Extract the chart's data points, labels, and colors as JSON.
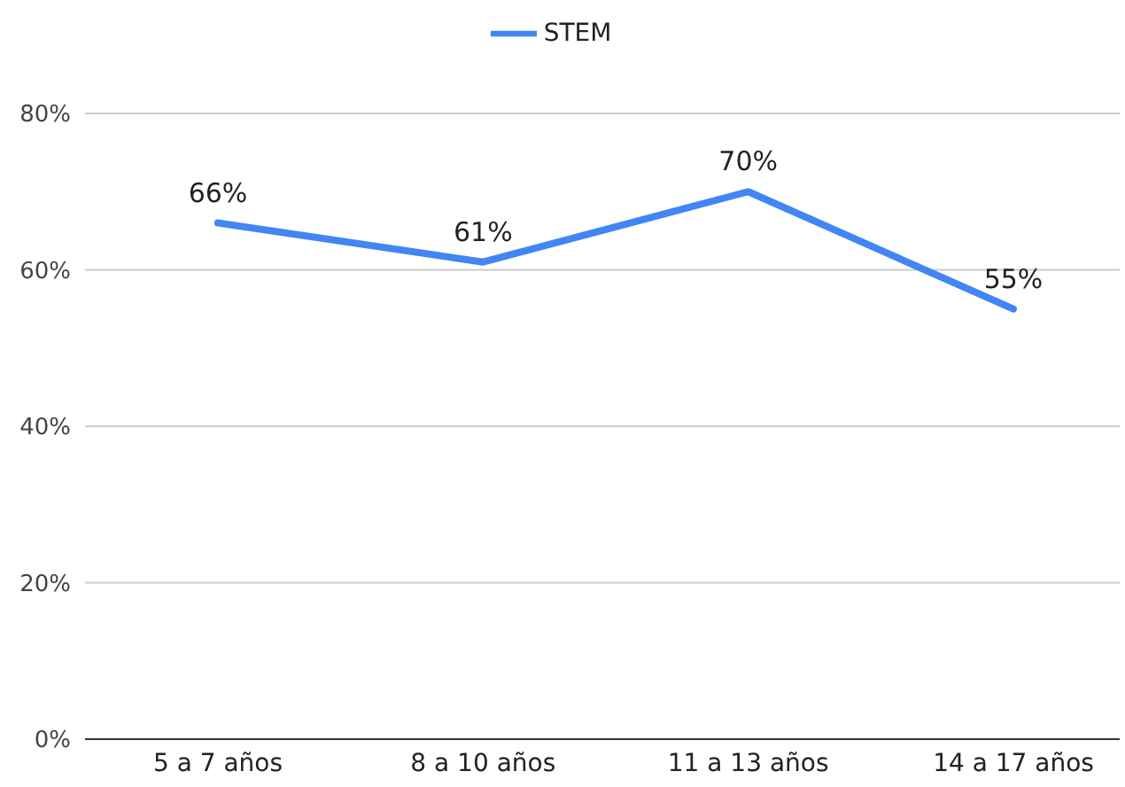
{
  "chart_data": {
    "type": "line",
    "categories": [
      "5 a 7 años",
      "8 a 10 años",
      "11 a 13 años",
      "14 a 17 años"
    ],
    "series": [
      {
        "name": "STEM",
        "color": "#4285f4",
        "values": [
          66,
          61,
          70,
          55
        ],
        "value_labels": [
          "66%",
          "61%",
          "70%",
          "55%"
        ]
      }
    ],
    "ylim": [
      0,
      80
    ],
    "yticks": [
      {
        "value": 0,
        "label": "0%"
      },
      {
        "value": 20,
        "label": "20%"
      },
      {
        "value": 40,
        "label": "40%"
      },
      {
        "value": 60,
        "label": "60%"
      },
      {
        "value": 80,
        "label": "80%"
      }
    ],
    "grid": "y",
    "legend": "top",
    "marker": "none",
    "line_style": "solid"
  }
}
